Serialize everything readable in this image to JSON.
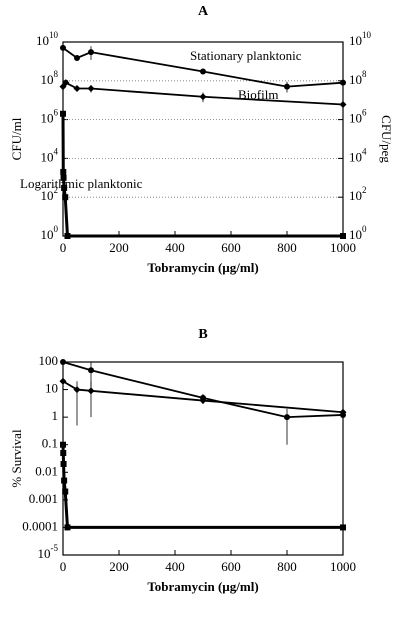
{
  "chart_data": [
    {
      "type": "line",
      "title": "A",
      "xlabel": "Tobramycin (µg/ml)",
      "ylabel": "CFU/ml",
      "y2label": "CFU/peg",
      "log_y": true,
      "grid": true,
      "xlim": [
        0,
        1000
      ],
      "xticks": [
        0,
        200,
        400,
        600,
        800,
        1000
      ],
      "ylim": [
        1,
        10000000000
      ],
      "yticks": [
        {
          "value": 1,
          "label": "10",
          "sup": "0"
        },
        {
          "value": 100,
          "label": "10",
          "sup": "2"
        },
        {
          "value": 10000,
          "label": "10",
          "sup": "4"
        },
        {
          "value": 1000000,
          "label": "10",
          "sup": "6"
        },
        {
          "value": 100000000,
          "label": "10",
          "sup": "8"
        },
        {
          "value": 10000000000,
          "label": "10",
          "sup": "10"
        }
      ],
      "y2lim": [
        1,
        10000000000
      ],
      "y2ticks": [
        {
          "value": 1,
          "label": "10",
          "sup": "0"
        },
        {
          "value": 100,
          "label": "10",
          "sup": "2"
        },
        {
          "value": 10000,
          "label": "10",
          "sup": "4"
        },
        {
          "value": 1000000,
          "label": "10",
          "sup": "6"
        },
        {
          "value": 100000000,
          "label": "10",
          "sup": "8"
        },
        {
          "value": 10000000000,
          "label": "10",
          "sup": "10"
        }
      ],
      "annotations": [
        "Stationary planktonic",
        "Biofilm",
        "Logarithmic planktonic"
      ],
      "series": [
        {
          "marker": "circle",
          "color": "#000",
          "x": [
            0,
            50,
            100,
            500,
            800,
            1000
          ],
          "values": [
            5000000000,
            1500000000,
            3000000000,
            300000000,
            50000000,
            80000000
          ],
          "error_low": [
            null,
            null,
            1200000000,
            null,
            25000000,
            null
          ],
          "error_high": [
            null,
            null,
            6000000000,
            null,
            90000000,
            null
          ]
        },
        {
          "marker": "diamond",
          "color": "#000",
          "x": [
            0,
            10,
            50,
            100,
            500,
            1000
          ],
          "values": [
            50000000,
            80000000,
            40000000,
            40000000,
            15000000,
            6000000
          ],
          "error_low": [
            null,
            null,
            null,
            25000000,
            8000000,
            null
          ],
          "error_high": [
            null,
            null,
            null,
            60000000,
            25000000,
            null
          ]
        },
        {
          "marker": "square",
          "color": "#000",
          "x": [
            0,
            1,
            2,
            4,
            8,
            16,
            1000
          ],
          "values": [
            2000000,
            2000,
            1000,
            300,
            100,
            1,
            1
          ],
          "error_low": [
            null,
            null,
            null,
            null,
            null,
            null,
            null
          ],
          "error_high": [
            null,
            null,
            null,
            null,
            null,
            null,
            null
          ]
        }
      ]
    },
    {
      "type": "line",
      "title": "B",
      "xlabel": "Tobramycin (µg/ml)",
      "ylabel": "% Survival",
      "log_y": true,
      "grid": false,
      "xlim": [
        0,
        1000
      ],
      "xticks": [
        0,
        200,
        400,
        600,
        800,
        1000
      ],
      "ylim": [
        1e-05,
        100
      ],
      "yticks": [
        {
          "value": 1e-05,
          "label": "10",
          "sup": "-5"
        },
        0.0001,
        0.001,
        0.01,
        0.1,
        1,
        10,
        100
      ],
      "series": [
        {
          "marker": "circle",
          "color": "#000",
          "x": [
            0,
            100,
            500,
            800,
            1000
          ],
          "values": [
            100,
            50,
            5,
            1,
            1.2
          ],
          "error_low": [
            null,
            10,
            3,
            0.1,
            null
          ],
          "error_high": [
            null,
            100,
            7,
            2,
            null
          ]
        },
        {
          "marker": "diamond",
          "color": "#000",
          "x": [
            0,
            50,
            100,
            500,
            1000
          ],
          "values": [
            20,
            10,
            9,
            4,
            1.5
          ],
          "error_low": [
            null,
            0.5,
            1,
            3,
            null
          ],
          "error_high": [
            null,
            20,
            20,
            5,
            null
          ]
        },
        {
          "marker": "square",
          "color": "#000",
          "x": [
            0,
            1,
            2,
            4,
            8,
            16,
            1000
          ],
          "values": [
            0.1,
            0.05,
            0.02,
            0.005,
            0.002,
            0.0001,
            0.0001
          ],
          "error_low": [
            null,
            null,
            null,
            null,
            null,
            null,
            null
          ],
          "error_high": [
            null,
            null,
            null,
            null,
            null,
            null,
            null
          ]
        }
      ]
    }
  ]
}
